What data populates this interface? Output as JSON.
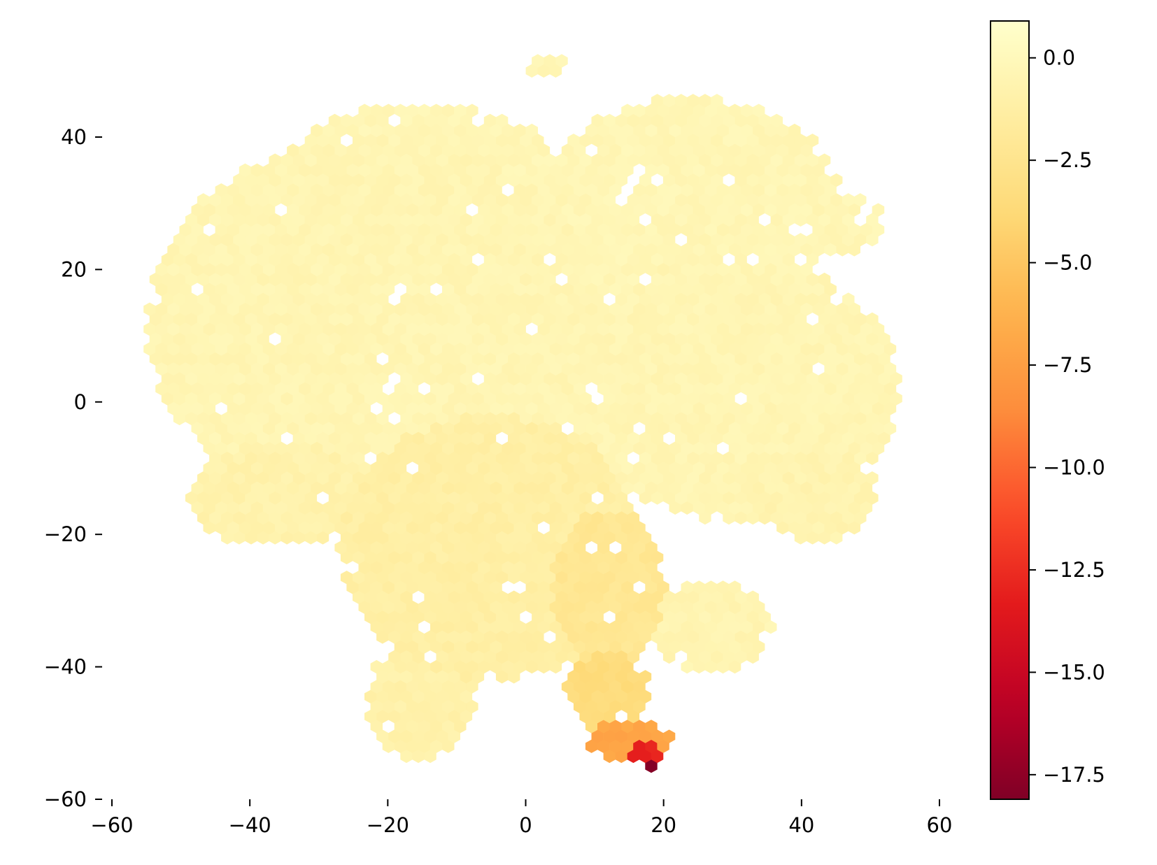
{
  "chart_data": {
    "type": "heatmap",
    "subtype": "hexbin",
    "title": "",
    "xlabel": "",
    "ylabel": "",
    "xlim": [
      -60,
      60
    ],
    "ylim": [
      -60,
      60
    ],
    "x_ticks": [
      -60,
      -40,
      -20,
      0,
      20,
      40,
      60
    ],
    "y_ticks": [
      -60,
      -40,
      -20,
      0,
      20,
      40
    ],
    "x_tick_labels": [
      "−60",
      "−40",
      "−20",
      "0",
      "20",
      "40",
      "60"
    ],
    "y_tick_labels": [
      "−60",
      "−40",
      "−20",
      "0",
      "20",
      "40"
    ],
    "grid": false,
    "colormap": "YlOrRd_r",
    "colorbar": {
      "min": -18.1,
      "max": 0.9,
      "ticks": [
        0.0,
        -2.5,
        -5.0,
        -7.5,
        -10.0,
        -12.5,
        -15.0,
        -17.5
      ],
      "tick_labels": [
        "0.0",
        "−2.5",
        "−5.0",
        "−7.5",
        "−10.0",
        "−12.5",
        "−15.0",
        "−17.5"
      ],
      "placement": "right"
    },
    "hex_size": 1.0,
    "regions": [
      {
        "name": "left-upper-cluster",
        "cx": -22,
        "cy": 12,
        "rx": 33,
        "ry": 28,
        "value": -0.4
      },
      {
        "name": "left-lower-lobe",
        "cx": -36,
        "cy": -14,
        "rx": 13,
        "ry": 8,
        "value": -0.8
      },
      {
        "name": "top-left-dome",
        "cx": -15,
        "cy": 35,
        "rx": 20,
        "ry": 10,
        "value": -0.3
      },
      {
        "name": "top-small-island",
        "cx": 3,
        "cy": 51,
        "rx": 3,
        "ry": 2,
        "value": -0.3
      },
      {
        "name": "right-upper-cluster",
        "cx": 24,
        "cy": 30,
        "rx": 22,
        "ry": 16,
        "value": -0.3
      },
      {
        "name": "right-upper-arm",
        "cx": 44,
        "cy": 27,
        "rx": 8,
        "ry": 5,
        "value": -0.3
      },
      {
        "name": "right-middle-cluster",
        "cx": 30,
        "cy": 2,
        "rx": 24,
        "ry": 20,
        "value": -0.4
      },
      {
        "name": "right-lower-lobe",
        "cx": 42,
        "cy": -14,
        "rx": 9,
        "ry": 7,
        "value": -0.6
      },
      {
        "name": "center-lower-cluster",
        "cx": -5,
        "cy": -22,
        "rx": 22,
        "ry": 20,
        "value": -1.2
      },
      {
        "name": "bottom-left-lobe",
        "cx": -15,
        "cy": -45,
        "rx": 8,
        "ry": 9,
        "value": -0.9
      },
      {
        "name": "center-right-arm",
        "cx": 12,
        "cy": -28,
        "rx": 8,
        "ry": 12,
        "value": -2.2
      },
      {
        "name": "lower-right-island",
        "cx": 27,
        "cy": -34,
        "rx": 9,
        "ry": 7,
        "value": -0.5
      },
      {
        "name": "bottom-stem",
        "cx": 12,
        "cy": -44,
        "rx": 6,
        "ry": 6,
        "value": -3.5
      },
      {
        "name": "bottom-hotspot",
        "cx": 15,
        "cy": -51,
        "rx": 6,
        "ry": 3.5,
        "value": -7.0
      },
      {
        "name": "bottom-core",
        "cx": 17,
        "cy": -53,
        "rx": 2.5,
        "ry": 1.8,
        "value": -13.0
      },
      {
        "name": "bottom-peak",
        "cx": 18,
        "cy": -54.5,
        "rx": 1.2,
        "ry": 1.0,
        "value": -17.8
      }
    ]
  }
}
